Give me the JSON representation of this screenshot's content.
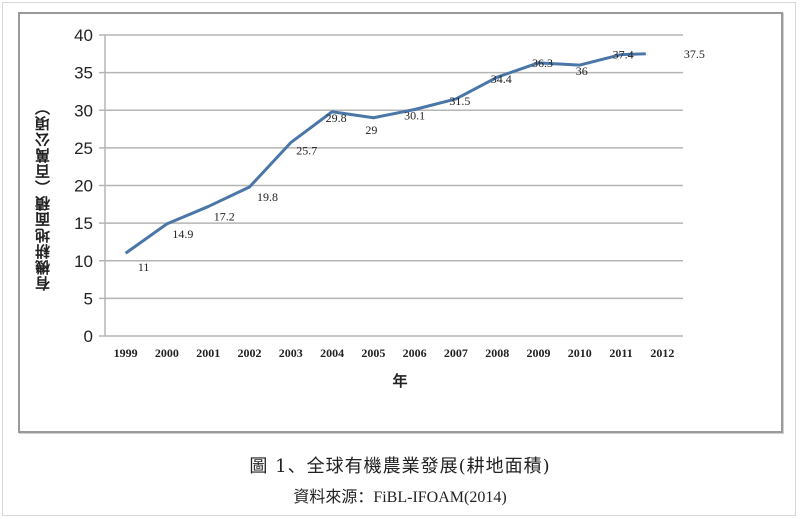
{
  "chart_data": {
    "type": "line",
    "title": "",
    "xlabel": "年",
    "ylabel": "有機耕地面積（百萬公頃）",
    "categories": [
      "1999",
      "2000",
      "2001",
      "2002",
      "2003",
      "2004",
      "2005",
      "2006",
      "2007",
      "2008",
      "2009",
      "2010",
      "2011",
      "2012"
    ],
    "series": [
      {
        "name": "有機耕地面積",
        "values": [
          11,
          14.9,
          17.2,
          19.8,
          25.7,
          29.8,
          29,
          30.1,
          31.5,
          34.4,
          36.3,
          36,
          37.4,
          37.5
        ],
        "color": "#4a76a8"
      }
    ],
    "data_labels": [
      "11",
      "14.9",
      "17.2",
      "19.8",
      "25.7",
      "29.8",
      "29",
      "30.1",
      "31.5",
      "34.4",
      "36.3",
      "36",
      "37.4",
      "37.5"
    ],
    "ylim": [
      0,
      40
    ],
    "yticks": [
      0,
      5,
      10,
      15,
      20,
      25,
      30,
      35,
      40
    ],
    "grid": true,
    "legend": "none"
  },
  "caption": {
    "title": "圖 1、全球有機農業發展(耕地面積)",
    "source": "資料來源：FiBL-IFOAM(2014)"
  },
  "colors": {
    "line": "#4a76a8",
    "grid": "#b5b5b5",
    "frame": "#9a9a9a"
  }
}
